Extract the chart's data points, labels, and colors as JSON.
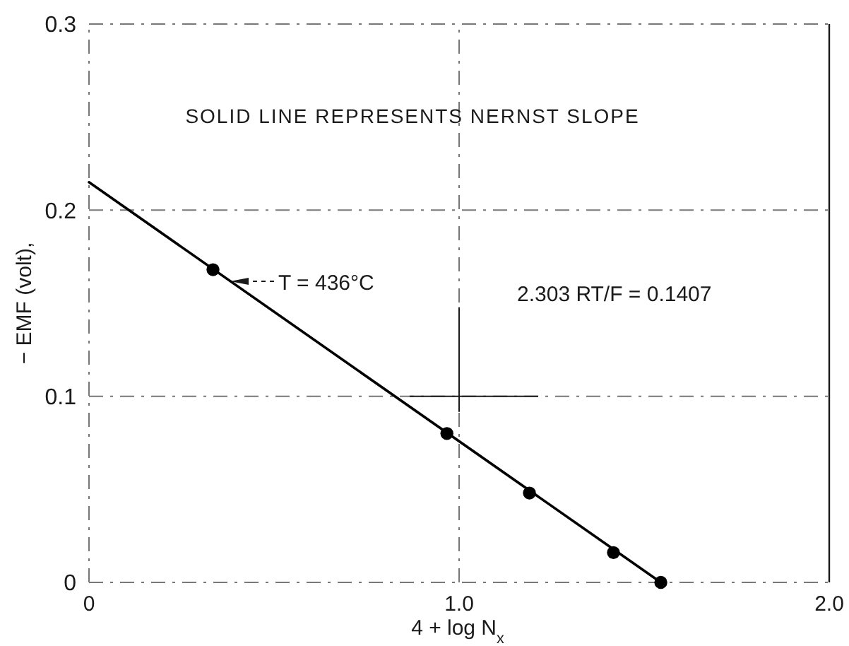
{
  "chart_data": {
    "type": "scatter",
    "xlabel": "4 + log N$_{x}$",
    "ylabel": "− EMF (volt),",
    "xlim": [
      0,
      2
    ],
    "ylim": [
      0,
      0.3
    ],
    "xticks": [
      0,
      {
        "value": 1,
        "label": "1.0"
      },
      {
        "value": 2,
        "label": "2.0"
      }
    ],
    "yticks": [
      0,
      0.1,
      0.2,
      0.3
    ],
    "grid": true,
    "series": [
      {
        "color": "#000000",
        "marker": "circle",
        "x": [
          0.335,
          0.967,
          1.19,
          1.417,
          1.545
        ],
        "values": [
          0.168,
          0.08,
          0.048,
          0.016,
          0
        ]
      },
      {
        "type": "line",
        "color": "#000000",
        "marker": "none",
        "line_style": "solid",
        "x": [
          0,
          1.545
        ],
        "values": [
          0.215,
          0
        ]
      }
    ],
    "annotations": [
      "SOLID LINE REPRESENTS NERNST SLOPE",
      "T = 436°C",
      "2.303 RT/F = 0.1407"
    ]
  }
}
